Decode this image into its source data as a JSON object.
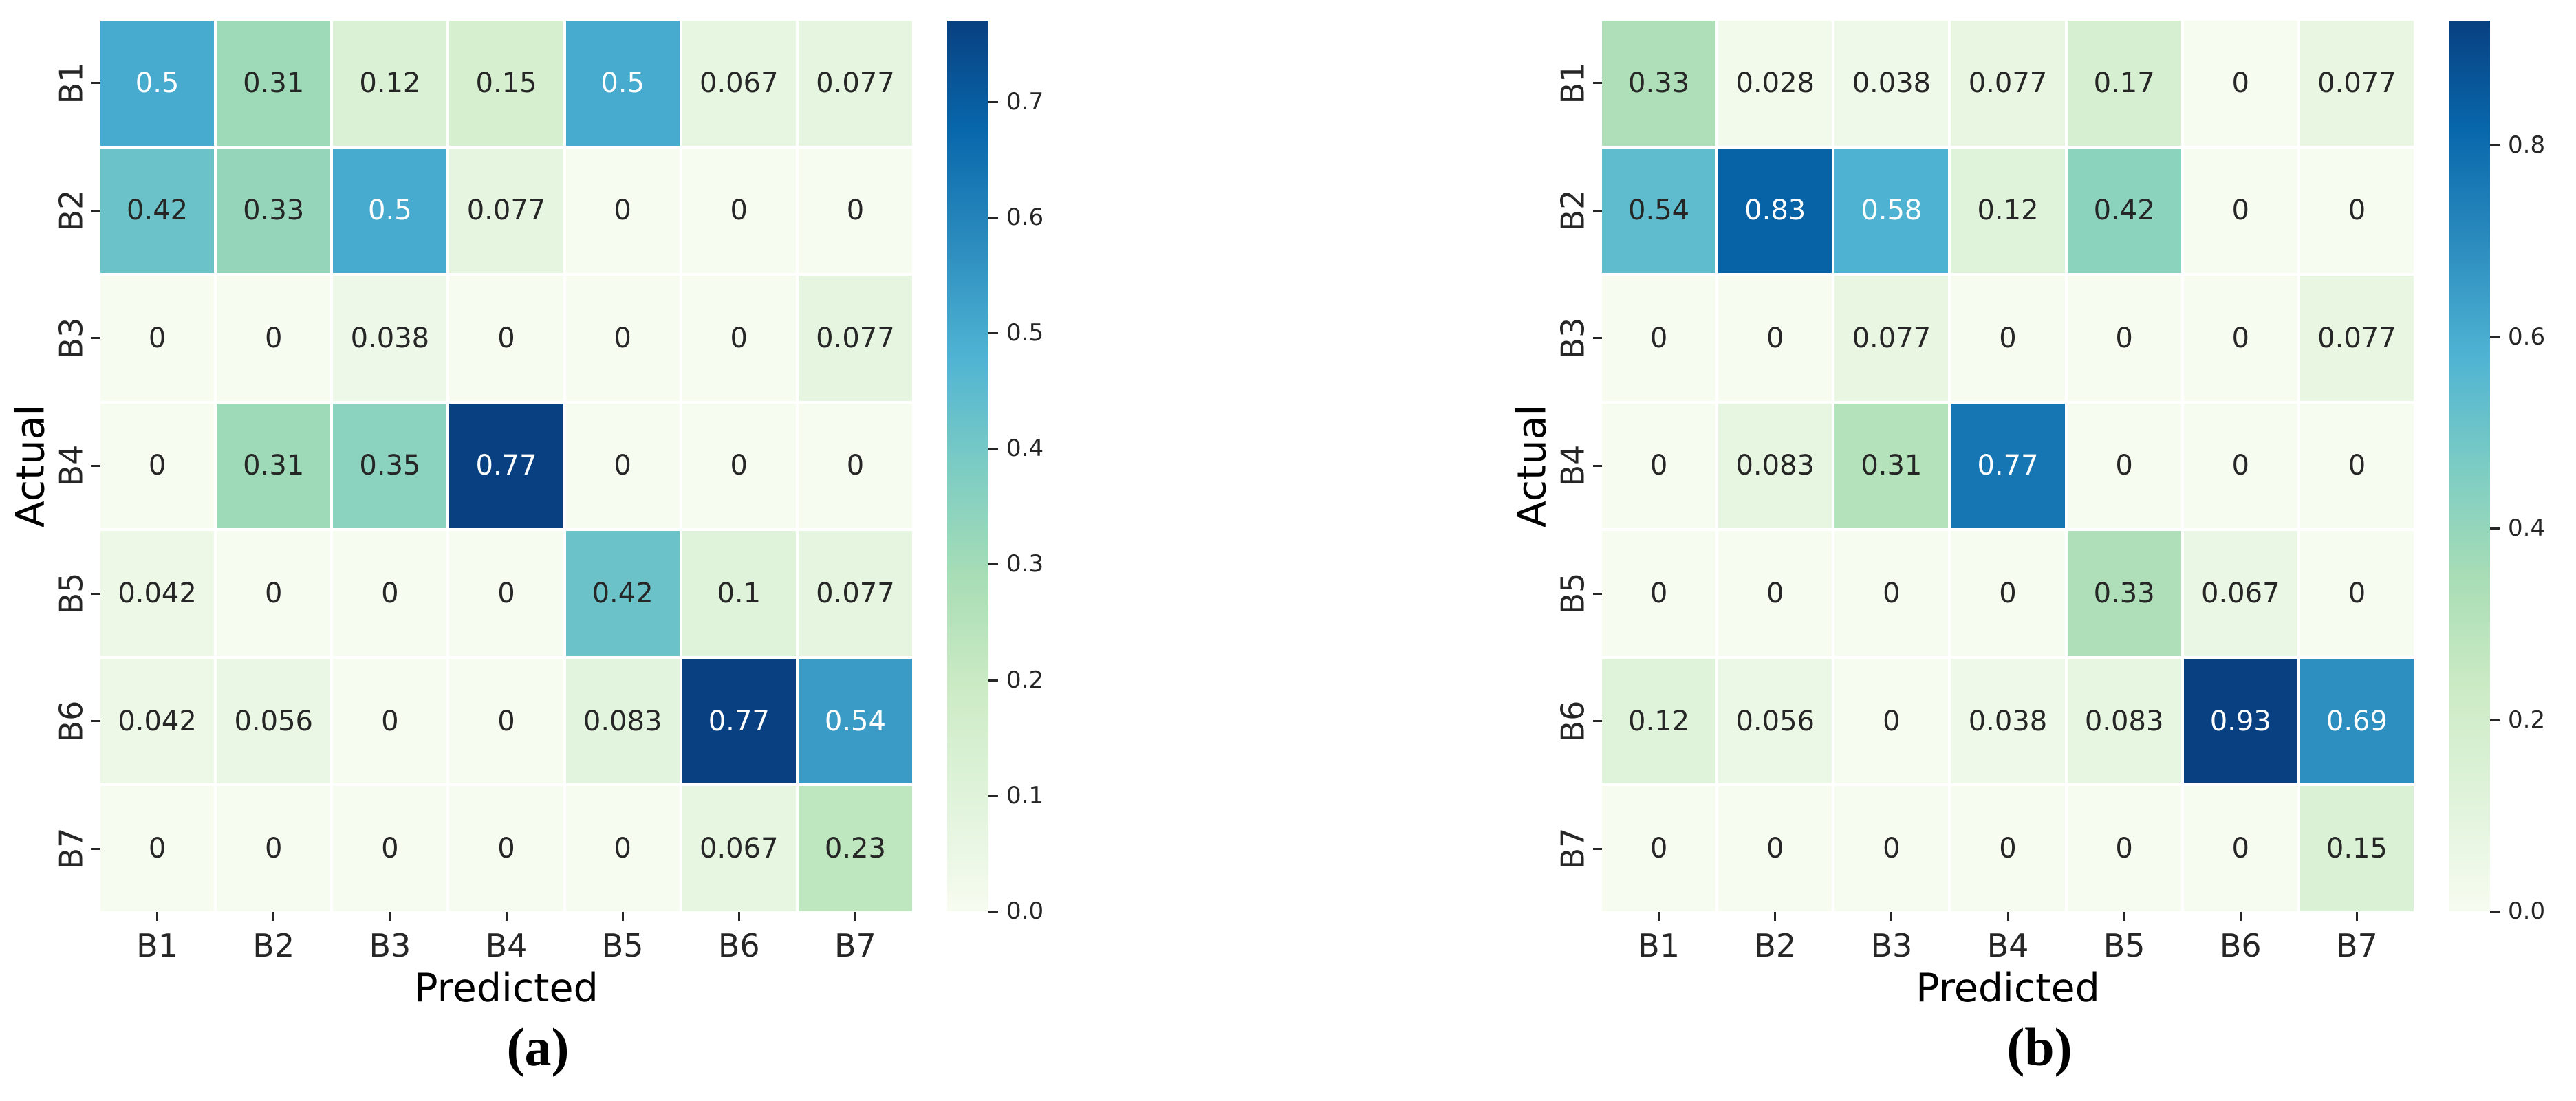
{
  "page": {
    "background": "#ffffff"
  },
  "colormap": {
    "name": "GnBu",
    "stops": [
      "#f7fcf0",
      "#e0f3db",
      "#ccebc5",
      "#a8ddb5",
      "#7bccc4",
      "#4eb3d3",
      "#2b8cbe",
      "#0868ac",
      "#084081"
    ]
  },
  "annotation_colors": {
    "dark": "#262626",
    "light": "#ffffff"
  },
  "tick_color": "#262626",
  "chart_data": [
    {
      "type": "heatmap",
      "caption": "(a)",
      "xlabel": "Predicted",
      "ylabel": "Actual",
      "x_ticklabels": [
        "B1",
        "B2",
        "B3",
        "B4",
        "B5",
        "B6",
        "B7"
      ],
      "y_ticklabels": [
        "B1",
        "B2",
        "B3",
        "B4",
        "B5",
        "B6",
        "B7"
      ],
      "vmin": 0.0,
      "vmax": 0.77,
      "colorbar_ticks": [
        0.0,
        0.1,
        0.2,
        0.3,
        0.4,
        0.5,
        0.6,
        0.7
      ],
      "colorbar_position": "right",
      "values": [
        [
          0.5,
          0.31,
          0.12,
          0.15,
          0.5,
          0.067,
          0.077
        ],
        [
          0.42,
          0.33,
          0.5,
          0.077,
          0,
          0,
          0
        ],
        [
          0,
          0,
          0.038,
          0,
          0,
          0,
          0.077
        ],
        [
          0,
          0.31,
          0.35,
          0.77,
          0,
          0,
          0
        ],
        [
          0.042,
          0,
          0,
          0,
          0.42,
          0.1,
          0.077
        ],
        [
          0.042,
          0.056,
          0,
          0,
          0.083,
          0.77,
          0.54
        ],
        [
          0,
          0,
          0,
          0,
          0,
          0.067,
          0.23
        ]
      ]
    },
    {
      "type": "heatmap",
      "caption": "(b)",
      "xlabel": "Predicted",
      "ylabel": "Actual",
      "x_ticklabels": [
        "B1",
        "B2",
        "B3",
        "B4",
        "B5",
        "B6",
        "B7"
      ],
      "y_ticklabels": [
        "B1",
        "B2",
        "B3",
        "B4",
        "B5",
        "B6",
        "B7"
      ],
      "vmin": 0.0,
      "vmax": 0.93,
      "colorbar_ticks": [
        0.0,
        0.2,
        0.4,
        0.6,
        0.8
      ],
      "colorbar_position": "right",
      "values": [
        [
          0.33,
          0.028,
          0.038,
          0.077,
          0.17,
          0,
          0.077
        ],
        [
          0.54,
          0.83,
          0.58,
          0.12,
          0.42,
          0,
          0
        ],
        [
          0,
          0,
          0.077,
          0,
          0,
          0,
          0.077
        ],
        [
          0,
          0.083,
          0.31,
          0.77,
          0,
          0,
          0
        ],
        [
          0,
          0,
          0,
          0,
          0.33,
          0.067,
          0
        ],
        [
          0.12,
          0.056,
          0,
          0.038,
          0.083,
          0.93,
          0.69
        ],
        [
          0,
          0,
          0,
          0,
          0,
          0,
          0.15
        ]
      ]
    }
  ]
}
